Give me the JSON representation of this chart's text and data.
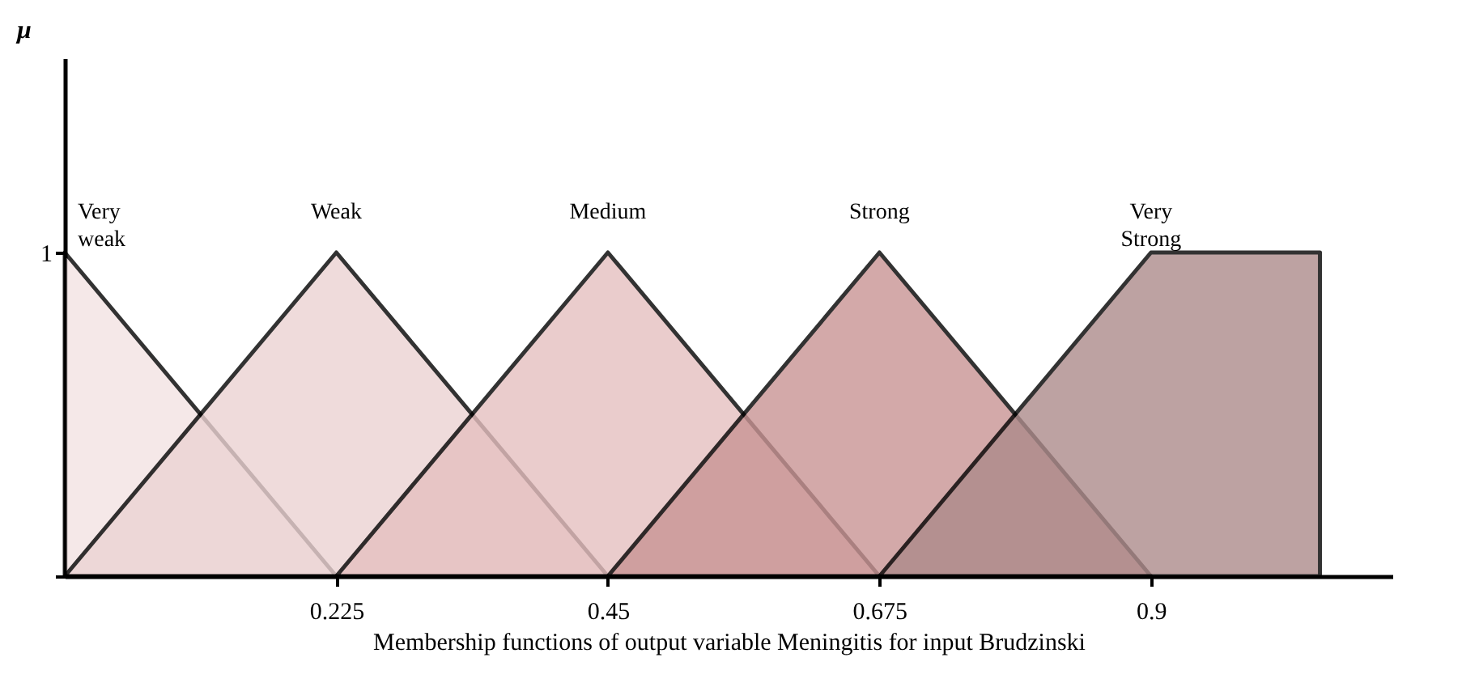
{
  "chart_data": {
    "type": "area",
    "xlabel": "Membership functions of output variable Meningitis for input Brudzinski",
    "ylabel": "μ",
    "xlim": [
      0,
      1.1
    ],
    "xticks": [
      0.225,
      0.45,
      0.675,
      0.9
    ],
    "ylim": [
      0,
      1.6
    ],
    "yticks": [
      {
        "value": 0,
        "label": null
      },
      1
    ],
    "grid": false,
    "series": [
      {
        "name": "Very weak",
        "color": "#f3e3e3",
        "x": [
          0,
          0.225
        ],
        "values": [
          1,
          0
        ]
      },
      {
        "name": "Weak",
        "color": "#ecd3d3",
        "x": [
          0,
          0.225,
          0.45
        ],
        "values": [
          0,
          1,
          0
        ]
      },
      {
        "name": "Medium",
        "color": "#e6c0c0",
        "x": [
          0.225,
          0.45,
          0.675
        ],
        "values": [
          0,
          1,
          0
        ]
      },
      {
        "name": "Strong",
        "color": "#c99494",
        "x": [
          0.45,
          0.675,
          0.9
        ],
        "values": [
          0,
          1,
          0
        ]
      },
      {
        "name": "Very Strong",
        "color": "#ad8b8b",
        "x": [
          0.675,
          0.9,
          1.04
        ],
        "values": [
          0,
          1,
          1
        ]
      }
    ]
  }
}
